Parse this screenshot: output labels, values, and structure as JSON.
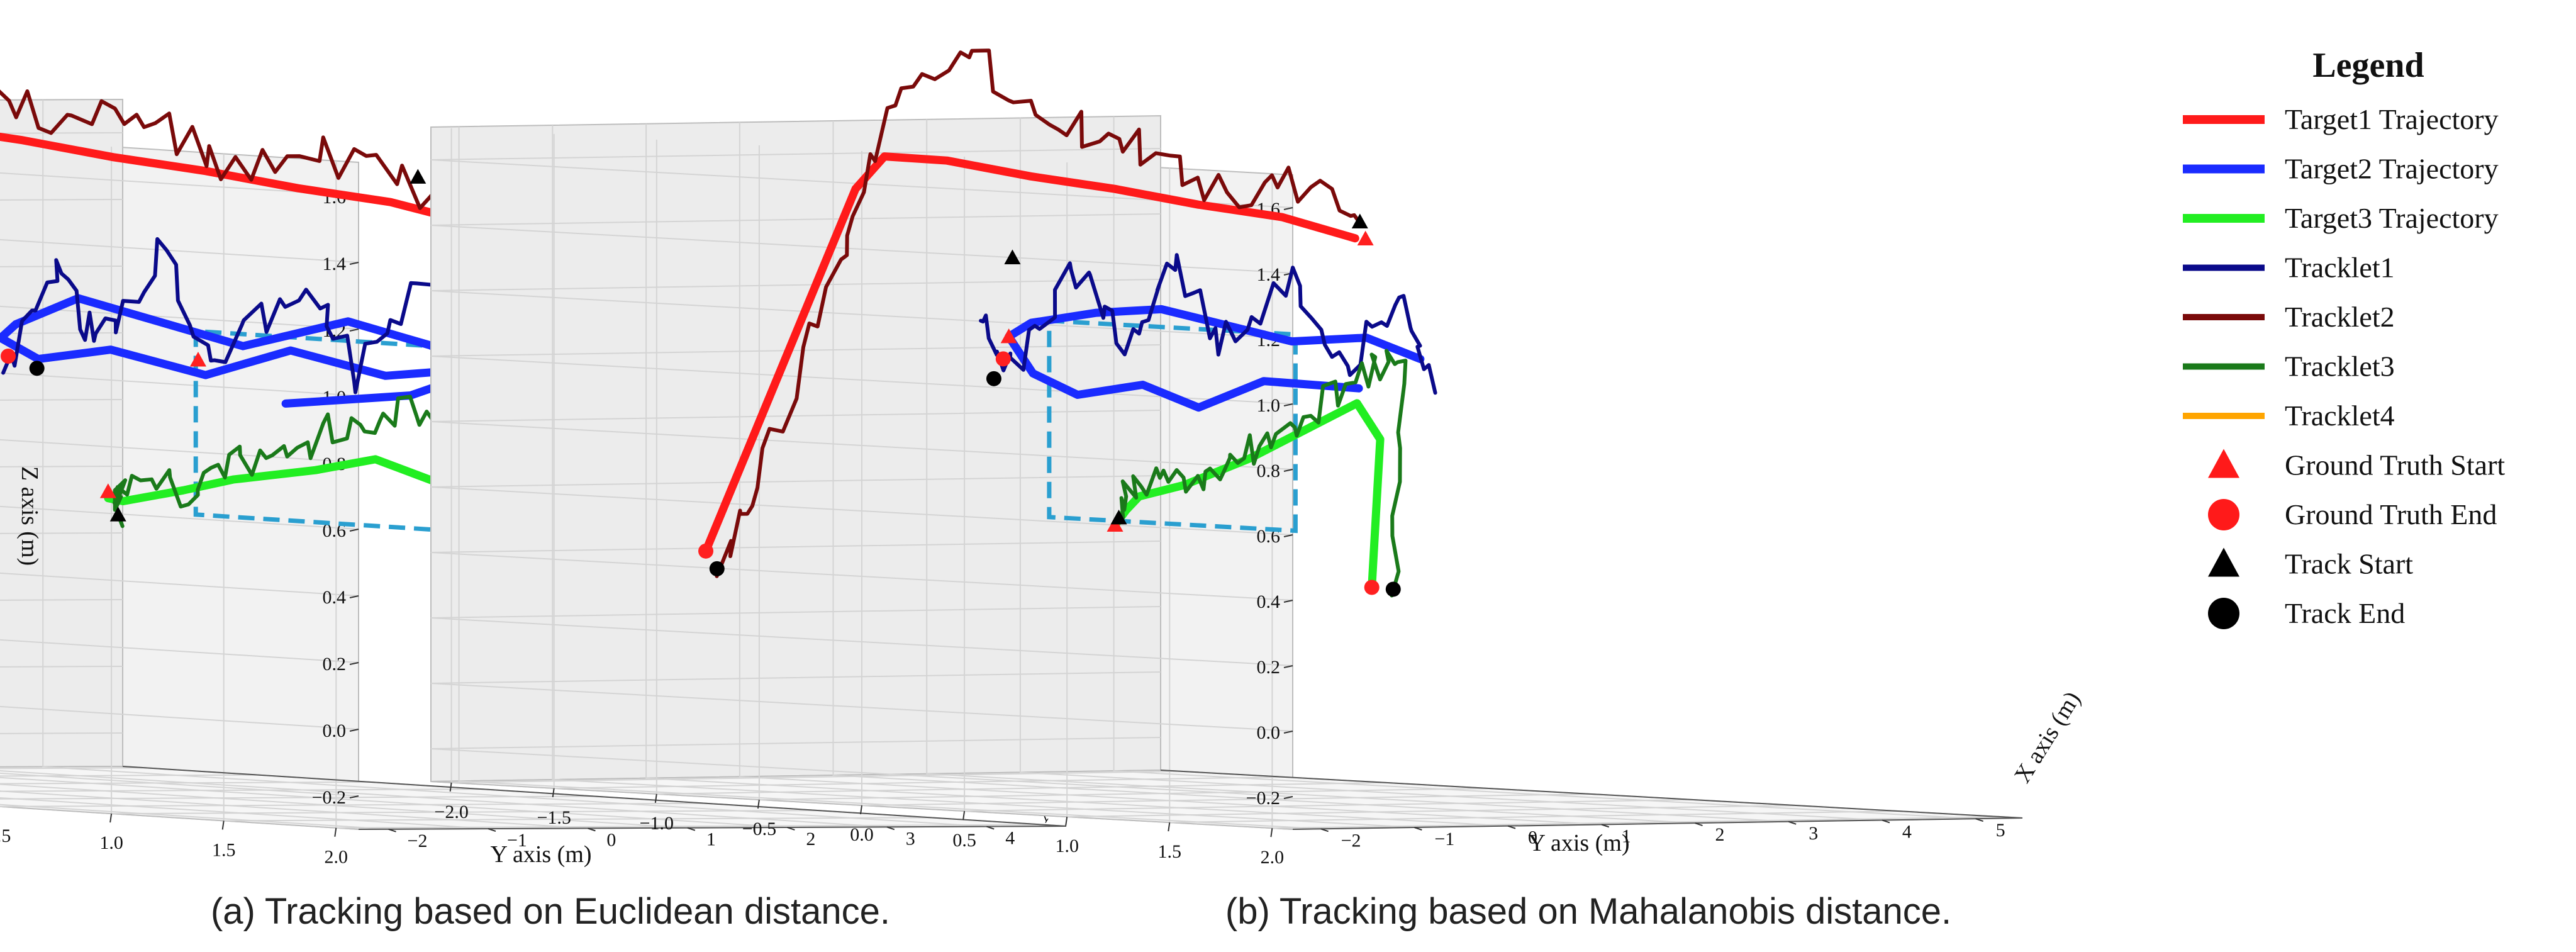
{
  "chart_data": [
    {
      "type": "line3d",
      "id": "a",
      "caption": "(a) Tracking based on Euclidean distance.",
      "xlabel": "X axis (m)",
      "ylabel": "Y axis (m)",
      "zlabel": "Z axis (m)",
      "x_ticks": [
        "−2",
        "−1",
        "0",
        "1",
        "2",
        "3",
        "4"
      ],
      "y_ticks": [
        "2.0",
        "1.5",
        "1.0",
        "0.5",
        "0.0",
        "−0.5",
        "−1.0",
        "−1.5",
        "−2.0"
      ],
      "z_ticks": [
        "−0.2",
        "0.0",
        "0.2",
        "0.4",
        "0.6",
        "0.8",
        "1.0",
        "1.2",
        "1.4",
        "1.6"
      ],
      "xlim": [
        -2.3,
        4.8
      ],
      "ylim": [
        2.1,
        -2.1
      ],
      "zlim": [
        -0.3,
        1.7
      ],
      "series": [
        {
          "name": "Target1 Trajectory",
          "role": "gt",
          "pts": [
            [
              0.3,
              1.35,
              1.5
            ],
            [
              0.5,
              1.0,
              1.53
            ],
            [
              0.7,
              0.5,
              1.55
            ],
            [
              0.9,
              0.0,
              1.58
            ],
            [
              1.1,
              -0.5,
              1.6
            ],
            [
              1.3,
              -1.0,
              1.63
            ],
            [
              1.5,
              -1.5,
              1.65
            ],
            [
              1.6,
              -1.85,
              1.67
            ],
            [
              1.5,
              -1.9,
              1.6
            ],
            [
              0.2,
              -1.9,
              0.4
            ]
          ]
        },
        {
          "name": "Target2 Trajectory",
          "role": "gt",
          "pts": [
            [
              0.6,
              1.5,
              1.0
            ],
            [
              0.9,
              1.0,
              1.1
            ],
            [
              1.2,
              0.5,
              1.15
            ],
            [
              1.5,
              -0.1,
              1.05
            ],
            [
              1.8,
              -0.6,
              1.1
            ],
            [
              2.1,
              -1.1,
              1.15
            ],
            [
              2.6,
              -1.6,
              1.05
            ],
            [
              2.9,
              -1.8,
              1.0
            ],
            [
              2.6,
              -1.5,
              0.95
            ],
            [
              2.2,
              -1.0,
              1.0
            ],
            [
              1.8,
              -0.4,
              0.95
            ],
            [
              1.3,
              0.2,
              1.05
            ],
            [
              0.9,
              0.8,
              1.0
            ],
            [
              0.6,
              1.4,
              1.05
            ],
            [
              0.7,
              1.0,
              0.95
            ],
            [
              0.8,
              0.4,
              0.9
            ]
          ]
        },
        {
          "name": "Target3 Trajectory",
          "role": "gt",
          "pts": [
            [
              0.3,
              1.3,
              0.35
            ],
            [
              0.5,
              1.2,
              0.7
            ],
            [
              0.8,
              0.8,
              0.75
            ],
            [
              1.1,
              0.4,
              0.7
            ],
            [
              1.4,
              -0.1,
              0.65
            ],
            [
              1.8,
              -0.5,
              0.6
            ],
            [
              2.1,
              -0.9,
              0.55
            ],
            [
              2.4,
              -1.1,
              0.55
            ]
          ]
        },
        {
          "name": "Tracklet1",
          "role": "track",
          "pts": [
            [
              0.5,
              1.6,
              0.9
            ],
            [
              0.6,
              1.5,
              1.1
            ],
            [
              0.9,
              1.0,
              1.3
            ],
            [
              1.1,
              0.6,
              1.0
            ],
            [
              1.4,
              0.2,
              1.25
            ],
            [
              1.7,
              -0.3,
              1.0
            ],
            [
              2.0,
              -0.7,
              1.3
            ],
            [
              2.3,
              -1.1,
              1.0
            ],
            [
              2.6,
              -1.4,
              1.2
            ],
            [
              2.7,
              -1.7,
              0.9
            ]
          ]
        },
        {
          "name": "Tracklet2",
          "role": "track",
          "pts": [
            [
              0.9,
              1.0,
              1.55
            ],
            [
              1.0,
              0.5,
              1.65
            ],
            [
              1.1,
              0.0,
              1.6
            ],
            [
              1.3,
              -0.5,
              1.75
            ],
            [
              1.5,
              -1.0,
              1.7
            ],
            [
              1.7,
              -1.5,
              1.9
            ],
            [
              1.6,
              -1.8,
              1.7
            ],
            [
              1.2,
              -1.8,
              1.3
            ],
            [
              0.5,
              -1.8,
              0.6
            ],
            [
              0.0,
              -1.8,
              0.3
            ]
          ]
        },
        {
          "name": "Tracklet3",
          "role": "track",
          "pts": [
            [
              0.2,
              1.4,
              0.35
            ],
            [
              0.4,
              1.35,
              0.8
            ],
            [
              0.7,
              1.0,
              0.9
            ],
            [
              1.0,
              0.6,
              0.85
            ],
            [
              1.3,
              0.2,
              0.75
            ],
            [
              1.6,
              -0.2,
              0.7
            ],
            [
              2.0,
              -0.6,
              0.6
            ],
            [
              2.3,
              -1.0,
              0.6
            ],
            [
              2.5,
              -1.1,
              0.5
            ]
          ]
        }
      ],
      "markers": [
        {
          "kind": "gt-start",
          "pt": [
            1.0,
            1.2,
            1.5
          ],
          "color": "#ff2020"
        },
        {
          "kind": "track-start",
          "pt": [
            1.0,
            0.9,
            1.6
          ],
          "color": "#000000"
        },
        {
          "kind": "gt-start",
          "pt": [
            1.5,
            -0.3,
            1.0
          ],
          "color": "#ff2020"
        },
        {
          "kind": "gt-end",
          "pt": [
            2.75,
            -1.7,
            0.95
          ],
          "color": "#ff2020"
        },
        {
          "kind": "track-end",
          "pt": [
            2.7,
            -1.55,
            0.92
          ],
          "color": "#000000"
        },
        {
          "kind": "gt-start",
          "pt": [
            2.4,
            -1.1,
            0.57
          ],
          "color": "#ff2020"
        },
        {
          "kind": "track-start",
          "pt": [
            2.5,
            -1.1,
            0.5
          ],
          "color": "#000000"
        },
        {
          "kind": "gt-end",
          "pt": [
            0.3,
            1.3,
            0.35
          ],
          "color": "#ff2020"
        },
        {
          "kind": "track-end",
          "pt": [
            0.2,
            1.45,
            0.32
          ],
          "color": "#000000"
        },
        {
          "kind": "gt-end",
          "pt": [
            0.2,
            -1.9,
            0.4
          ],
          "color": "#ff2020"
        },
        {
          "kind": "track-end",
          "pt": [
            0.0,
            -1.8,
            0.3
          ],
          "color": "#000000"
        }
      ],
      "roi": [
        [
          0.8,
          1.2,
          0.55
        ],
        [
          0.8,
          1.2,
          1.1
        ],
        [
          0.8,
          0.0,
          1.1
        ],
        [
          0.8,
          0.0,
          0.55
        ]
      ]
    },
    {
      "type": "line3d",
      "id": "b",
      "caption": "(b) Tracking based on Mahalanobis distance.",
      "xlabel": "X axis (m)",
      "ylabel": "Y axis (m)",
      "zlabel": "",
      "x_ticks": [
        "−2",
        "−1",
        "0",
        "1",
        "2",
        "3",
        "4",
        "5"
      ],
      "y_ticks": [
        "2.0",
        "1.5",
        "1.0",
        "0.5",
        "0.0",
        "−0.5",
        "−1.0",
        "−1.5",
        "−2.0"
      ],
      "z_ticks": [
        "−0.2",
        "0.0",
        "0.2",
        "0.4",
        "0.6",
        "0.8",
        "1.0",
        "1.2",
        "1.4",
        "1.6"
      ],
      "xlim": [
        -2.3,
        5.5
      ],
      "ylim": [
        2.1,
        -2.1
      ],
      "zlim": [
        -0.3,
        1.7
      ],
      "series": [
        {
          "name": "Target1 Trajectory",
          "role": "gt",
          "pts": [
            [
              1.0,
              0.9,
              1.45
            ],
            [
              1.1,
              0.5,
              1.5
            ],
            [
              1.3,
              0.0,
              1.52
            ],
            [
              1.5,
              -0.5,
              1.55
            ],
            [
              1.7,
              -1.0,
              1.57
            ],
            [
              1.9,
              -1.5,
              1.6
            ],
            [
              2.0,
              -1.85,
              1.6
            ],
            [
              1.8,
              -1.9,
              1.5
            ],
            [
              0.2,
              -1.9,
              0.4
            ]
          ]
        },
        {
          "name": "Target2 Trajectory",
          "role": "gt",
          "pts": [
            [
              0.6,
              1.4,
              1.1
            ],
            [
              0.9,
              1.0,
              1.15
            ],
            [
              1.2,
              0.5,
              1.12
            ],
            [
              1.6,
              0.0,
              1.15
            ],
            [
              2.0,
              -0.5,
              1.18
            ],
            [
              2.4,
              -1.0,
              1.15
            ],
            [
              2.8,
              -1.5,
              1.1
            ],
            [
              3.0,
              -1.7,
              1.05
            ],
            [
              2.6,
              -1.4,
              0.95
            ],
            [
              2.2,
              -1.0,
              0.9
            ],
            [
              1.8,
              -0.5,
              0.95
            ],
            [
              1.3,
              0.0,
              0.9
            ],
            [
              0.9,
              0.5,
              1.0
            ],
            [
              0.6,
              1.1,
              1.0
            ]
          ]
        },
        {
          "name": "Target3 Trajectory",
          "role": "gt",
          "pts": [
            [
              0.3,
              1.3,
              0.4
            ],
            [
              0.5,
              1.25,
              0.85
            ],
            [
              0.8,
              1.0,
              0.95
            ],
            [
              1.1,
              0.6,
              0.85
            ],
            [
              1.4,
              0.2,
              0.75
            ],
            [
              1.8,
              -0.3,
              0.65
            ],
            [
              2.2,
              -0.7,
              0.6
            ],
            [
              2.5,
              -0.9,
              0.55
            ],
            [
              2.6,
              -1.0,
              0.5
            ]
          ]
        },
        {
          "name": "Tracklet1",
          "role": "track",
          "pts": [
            [
              0.5,
              1.5,
              1.0
            ],
            [
              0.6,
              1.3,
              1.3
            ],
            [
              0.9,
              0.9,
              1.05
            ],
            [
              1.2,
              0.5,
              1.3
            ],
            [
              1.5,
              0.0,
              1.1
            ],
            [
              1.9,
              -0.4,
              1.35
            ],
            [
              2.3,
              -0.8,
              1.05
            ],
            [
              2.6,
              -1.2,
              1.3
            ],
            [
              2.8,
              -1.6,
              0.95
            ],
            [
              2.7,
              -1.7,
              1.1
            ]
          ]
        },
        {
          "name": "Tracklet2",
          "role": "track",
          "pts": [
            [
              1.0,
              0.95,
              1.5
            ],
            [
              1.2,
              0.5,
              1.6
            ],
            [
              1.4,
              0.0,
              1.55
            ],
            [
              1.6,
              -0.5,
              1.7
            ],
            [
              1.9,
              -1.0,
              1.75
            ],
            [
              2.1,
              -1.5,
              1.95
            ],
            [
              1.9,
              -1.8,
              1.7
            ],
            [
              1.3,
              -1.8,
              1.2
            ],
            [
              0.5,
              -1.8,
              0.6
            ],
            [
              0.1,
              -1.8,
              0.35
            ]
          ]
        },
        {
          "name": "Tracklet3",
          "role": "track",
          "pts": [
            [
              0.2,
              1.45,
              0.4
            ],
            [
              0.4,
              1.4,
              1.1
            ],
            [
              0.7,
              1.1,
              1.05
            ],
            [
              1.0,
              0.7,
              0.9
            ],
            [
              1.3,
              0.3,
              0.8
            ],
            [
              1.7,
              -0.1,
              0.7
            ],
            [
              2.1,
              -0.5,
              0.65
            ],
            [
              2.5,
              -0.9,
              0.6
            ],
            [
              2.6,
              -1.0,
              0.5
            ]
          ]
        }
      ],
      "markers": [
        {
          "kind": "gt-start",
          "pt": [
            1.0,
            0.95,
            1.45
          ],
          "color": "#ff2020"
        },
        {
          "kind": "track-start",
          "pt": [
            1.05,
            0.9,
            1.5
          ],
          "color": "#000000"
        },
        {
          "kind": "track-start",
          "pt": [
            2.6,
            -1.5,
            1.3
          ],
          "color": "#000000"
        },
        {
          "kind": "gt-start",
          "pt": [
            3.0,
            -1.7,
            1.05
          ],
          "color": "#ff2020"
        },
        {
          "kind": "gt-end",
          "pt": [
            3.05,
            -1.75,
            0.98
          ],
          "color": "#ff2020"
        },
        {
          "kind": "track-end",
          "pt": [
            2.95,
            -1.75,
            0.92
          ],
          "color": "#000000"
        },
        {
          "kind": "gt-start",
          "pt": [
            2.6,
            -1.0,
            0.5
          ],
          "color": "#ff2020"
        },
        {
          "kind": "track-start",
          "pt": [
            2.75,
            -1.05,
            0.52
          ],
          "color": "#000000"
        },
        {
          "kind": "gt-end",
          "pt": [
            0.3,
            1.3,
            0.4
          ],
          "color": "#ff2020"
        },
        {
          "kind": "track-end",
          "pt": [
            0.2,
            1.45,
            0.4
          ],
          "color": "#000000"
        },
        {
          "kind": "gt-end",
          "pt": [
            0.2,
            -1.9,
            0.4
          ],
          "color": "#ff2020"
        },
        {
          "kind": "track-end",
          "pt": [
            0.1,
            -1.8,
            0.35
          ],
          "color": "#000000"
        }
      ],
      "roi": [
        [
          0.8,
          0.7,
          0.55
        ],
        [
          0.8,
          0.7,
          1.15
        ],
        [
          0.8,
          -0.5,
          1.15
        ],
        [
          0.8,
          -0.5,
          0.55
        ]
      ]
    }
  ],
  "legend": {
    "title": "Legend",
    "items": [
      {
        "label": "Target1 Trajectory",
        "kind": "line",
        "color": "#ff1a1a",
        "width": 14
      },
      {
        "label": "Target2 Trajectory",
        "kind": "line",
        "color": "#1a2bff",
        "width": 14
      },
      {
        "label": "Target3 Trajectory",
        "kind": "line",
        "color": "#22ee22",
        "width": 14
      },
      {
        "label": "Tracklet1",
        "kind": "line",
        "color": "#0a0a8a",
        "width": 10
      },
      {
        "label": "Tracklet2",
        "kind": "line",
        "color": "#7a0a0a",
        "width": 10
      },
      {
        "label": "Tracklet3",
        "kind": "line",
        "color": "#1a7a1a",
        "width": 10
      },
      {
        "label": "Tracklet4",
        "kind": "line",
        "color": "#ffa500",
        "width": 10
      },
      {
        "label": "Ground Truth Start",
        "kind": "triangle",
        "color": "#ff1a1a"
      },
      {
        "label": "Ground Truth End",
        "kind": "circle",
        "color": "#ff1a1a"
      },
      {
        "label": "Track Start",
        "kind": "triangle",
        "color": "#000000"
      },
      {
        "label": "Track End",
        "kind": "circle",
        "color": "#000000"
      }
    ]
  },
  "colors": {
    "Target1 Trajectory": "#ff1a1a",
    "Target2 Trajectory": "#1a2bff",
    "Target3 Trajectory": "#22ee22",
    "Tracklet1": "#0a0a8a",
    "Tracklet2": "#7a0a0a",
    "Tracklet3": "#1a7a1a",
    "roi": "#2a9fd0"
  }
}
